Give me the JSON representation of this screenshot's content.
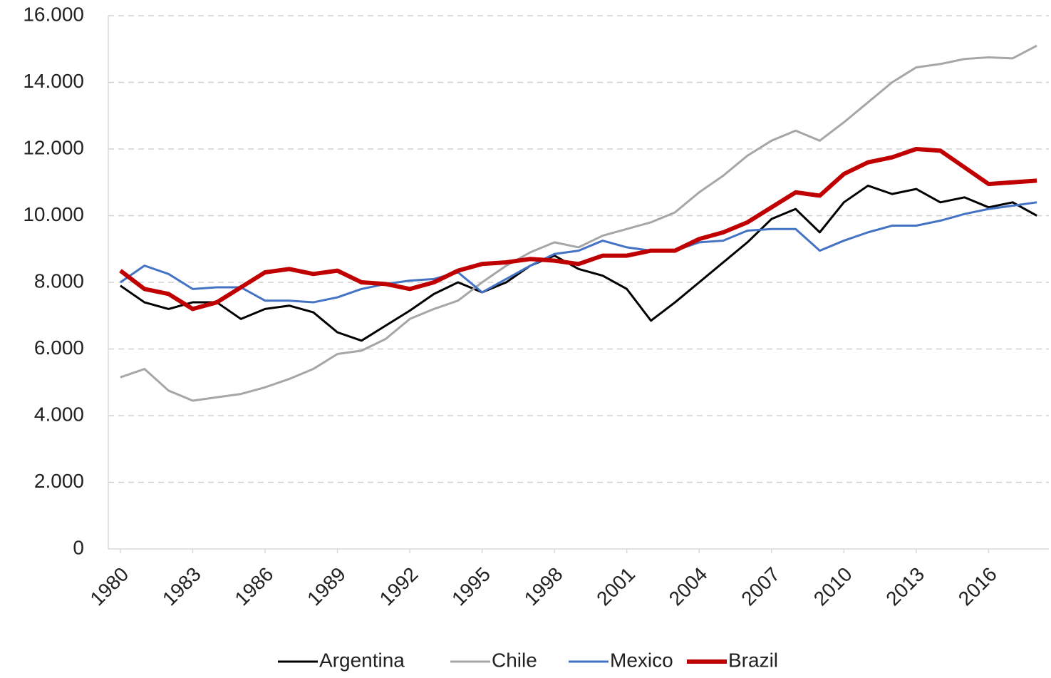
{
  "chart_data": {
    "type": "line",
    "x": [
      1980,
      1981,
      1982,
      1983,
      1984,
      1985,
      1986,
      1987,
      1988,
      1989,
      1990,
      1991,
      1992,
      1993,
      1994,
      1995,
      1996,
      1997,
      1998,
      1999,
      2000,
      2001,
      2002,
      2003,
      2004,
      2005,
      2006,
      2007,
      2008,
      2009,
      2010,
      2011,
      2012,
      2013,
      2014,
      2015,
      2016,
      2017,
      2018
    ],
    "xlim": [
      1979.5,
      2018.5
    ],
    "xticks": [
      1980,
      1983,
      1986,
      1989,
      1992,
      1995,
      1998,
      2001,
      2004,
      2007,
      2010,
      2013,
      2016
    ],
    "ylim": [
      0,
      16000
    ],
    "yticks": [
      0,
      {
        "value": 2000,
        "label": "2.000"
      },
      {
        "value": 4000,
        "label": "4.000"
      },
      {
        "value": 6000,
        "label": "6.000"
      },
      {
        "value": 8000,
        "label": "8.000"
      },
      {
        "value": 10000,
        "label": "10.000"
      },
      {
        "value": 12000,
        "label": "12.000"
      },
      {
        "value": 14000,
        "label": "14.000"
      },
      {
        "value": 16000,
        "label": "16.000"
      }
    ],
    "grid": true,
    "legend": "bottom",
    "series": [
      {
        "name": "Argentina",
        "color": "#000000",
        "width": 3,
        "values": [
          7900,
          7400,
          7200,
          7400,
          7400,
          6900,
          7200,
          7300,
          7100,
          6500,
          6250,
          6700,
          7150,
          7650,
          8000,
          7700,
          8000,
          8500,
          8800,
          8400,
          8200,
          7800,
          6850,
          7400,
          8000,
          8600,
          9200,
          9900,
          10200,
          9500,
          10400,
          10900,
          10650,
          10800,
          10400,
          10550,
          10250,
          10400,
          10000
        ]
      },
      {
        "name": "Chile",
        "color": "#a6a6a6",
        "width": 3,
        "values": [
          5150,
          5400,
          4750,
          4450,
          4550,
          4650,
          4850,
          5100,
          5400,
          5850,
          5950,
          6300,
          6900,
          7200,
          7450,
          8000,
          8500,
          8900,
          9200,
          9050,
          9400,
          9600,
          9800,
          10100,
          10700,
          11200,
          11800,
          12250,
          12550,
          12250,
          12800,
          13400,
          14000,
          14450,
          14550,
          14700,
          14750,
          14720,
          15100
        ]
      },
      {
        "name": "Mexico",
        "color": "#4472c4",
        "width": 3,
        "values": [
          8000,
          8500,
          8250,
          7800,
          7850,
          7850,
          7450,
          7450,
          7400,
          7550,
          7800,
          7950,
          8050,
          8100,
          8300,
          7700,
          8100,
          8500,
          8850,
          8950,
          9250,
          9050,
          8950,
          8950,
          9200,
          9250,
          9550,
          9600,
          9600,
          8950,
          9250,
          9500,
          9700,
          9700,
          9850,
          10050,
          10200,
          10300,
          10400
        ]
      },
      {
        "name": "Brazil",
        "color": "#c00000",
        "width": 6,
        "values": [
          8350,
          7800,
          7650,
          7200,
          7400,
          7850,
          8300,
          8400,
          8250,
          8350,
          8000,
          7950,
          7800,
          8000,
          8350,
          8550,
          8600,
          8700,
          8650,
          8550,
          8800,
          8800,
          8950,
          8950,
          9300,
          9500,
          9800,
          10250,
          10700,
          10600,
          11250,
          11600,
          11750,
          12000,
          11950,
          11450,
          10950,
          11000,
          11050
        ]
      }
    ]
  }
}
